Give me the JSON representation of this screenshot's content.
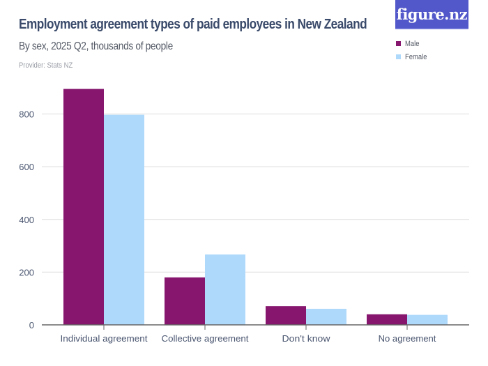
{
  "header": {
    "title": "Employment agreement types of paid employees in New Zealand",
    "subtitle": "By sex, 2025 Q2, thousands of people",
    "provider": "Provider: Stats NZ",
    "logo_text": "figure.nz"
  },
  "legend": {
    "items": [
      {
        "label": "Male",
        "color": "#86166e"
      },
      {
        "label": "Female",
        "color": "#afd9fb"
      }
    ]
  },
  "colors": {
    "male": "#86166e",
    "female": "#afd9fb",
    "gridline": "#e3e3e3",
    "axis": "#666666",
    "logo_bg": "#5258c9"
  },
  "chart_data": {
    "type": "bar",
    "title": "Employment agreement types of paid employees in New Zealand",
    "subtitle": "By sex, 2025 Q2, thousands of people",
    "xlabel": "",
    "ylabel": "",
    "categories": [
      "Individual agreement",
      "Collective agreement",
      "Don't know",
      "No agreement"
    ],
    "series": [
      {
        "name": "Male",
        "color": "#86166e",
        "values": [
          895,
          180,
          71,
          40
        ]
      },
      {
        "name": "Female",
        "color": "#afd9fb",
        "values": [
          797,
          267,
          61,
          38
        ]
      }
    ],
    "yticks": [
      0,
      200,
      400,
      600,
      800
    ],
    "ylim": [
      0,
      900
    ],
    "grid": true,
    "legend_position": "top-right"
  }
}
